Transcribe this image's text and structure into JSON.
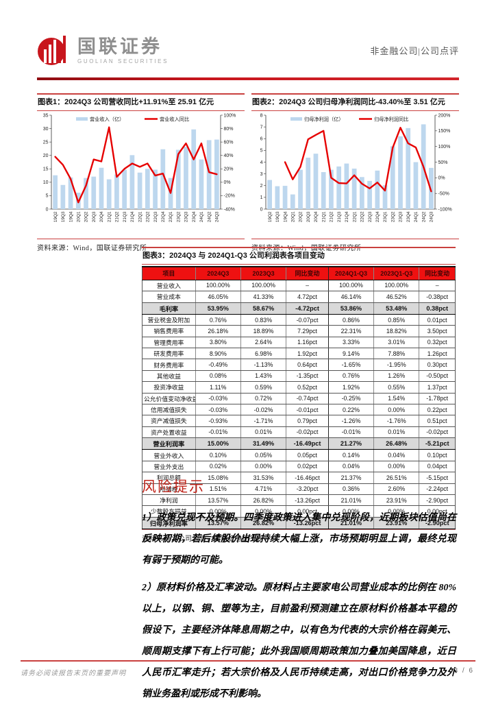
{
  "header": {
    "brand_cn": "国联证券",
    "brand_en": "GUOLIAN SECURITIES",
    "doc_type": "非金融公司|公司点评"
  },
  "figures": {
    "fig1": {
      "title": "图表1：2024Q3 公司营收同比+11.91%至 25.91 亿元",
      "source": "资料来源：Wind，国联证券研究所"
    },
    "fig2": {
      "title": "图表2：2024Q3 公司归母净利润同比-43.40%至 3.51 亿元",
      "source": "资料来源：Wind，国联证券研究所"
    },
    "fig3": {
      "title": "图表3：2024Q3 与 2024Q1-Q3 公司利润表各项目变动",
      "source": "资料来源：公司公告，国联证券研究所"
    }
  },
  "chart_data": [
    {
      "type": "bar",
      "title": "2024Q3 公司营收同比+11.91%至 25.91 亿元",
      "categories": [
        "19Q2",
        "19Q3",
        "19Q4",
        "20Q1",
        "20Q2",
        "20Q3",
        "20Q4",
        "21Q1",
        "21Q2",
        "21Q3",
        "21Q4",
        "22Q1",
        "22Q2",
        "22Q3",
        "22Q4",
        "23Q1",
        "23Q2",
        "23Q3",
        "23Q4",
        "24Q1",
        "24Q2",
        "24Q3"
      ],
      "series": [
        {
          "name": "营业收入（亿）",
          "type": "bar",
          "axis": "left",
          "values": [
            12.6,
            9.0,
            11.8,
            6.1,
            11.6,
            12.1,
            15.4,
            11.1,
            12.9,
            14.7,
            20.1,
            13.6,
            15.0,
            14.7,
            22.3,
            11.6,
            22.1,
            23.2,
            29.7,
            18.5,
            25.7,
            25.91
          ]
        },
        {
          "name": "营业收入同比",
          "type": "line",
          "axis": "right",
          "values": [
            38,
            26,
            5,
            -30,
            -5,
            34,
            31,
            82,
            8,
            20,
            28,
            23,
            28,
            10,
            13,
            -16,
            42,
            58,
            34,
            58,
            15,
            11.91
          ]
        }
      ],
      "left_axis": {
        "min": 0,
        "max": 35,
        "step": 5
      },
      "right_axis": {
        "min": -40,
        "max": 100,
        "step": 20,
        "suffix": "%"
      },
      "legend_position": "top",
      "bar_color": "#BDD7EE",
      "line_color": "#E60000"
    },
    {
      "type": "bar",
      "title": "2024Q3 公司归母净利润同比-43.40%至 3.51 亿元",
      "categories": [
        "19Q2",
        "19Q3",
        "19Q4",
        "20Q1",
        "20Q2",
        "20Q3",
        "20Q4",
        "21Q1",
        "21Q2",
        "21Q3",
        "21Q4",
        "22Q1",
        "22Q2",
        "22Q3",
        "22Q4",
        "23Q1",
        "23Q2",
        "23Q3",
        "23Q4",
        "24Q1",
        "24Q2",
        "24Q3"
      ],
      "series": [
        {
          "name": "归母净利润（亿）",
          "type": "bar",
          "axis": "left",
          "values": [
            2.48,
            1.95,
            1.98,
            1.25,
            3.35,
            4.38,
            4.72,
            3.15,
            3.35,
            3.63,
            3.88,
            3.45,
            2.73,
            2.4,
            3.28,
            2.03,
            5.35,
            6.2,
            6.9,
            4.0,
            7.22,
            3.51
          ]
        },
        {
          "name": "归母净利润同比",
          "type": "line",
          "axis": "right",
          "values": [
            null,
            null,
            50,
            -5,
            35,
            123,
            137,
            150,
            0,
            -17,
            -18,
            8,
            -19,
            -34,
            -15,
            -41,
            96,
            160,
            110,
            97,
            35,
            -43.4
          ]
        }
      ],
      "left_axis": {
        "min": 0,
        "max": 8,
        "step": 1
      },
      "right_axis": {
        "min": -100,
        "max": 200,
        "step": 50,
        "suffix": "%"
      },
      "legend_position": "top",
      "bar_color": "#BDD7EE",
      "line_color": "#E60000"
    }
  ],
  "table": {
    "columns": [
      "项目",
      "2024Q3",
      "2023Q3",
      "同比变动",
      "2024Q1-Q3",
      "2023Q1-Q3",
      "同比变动"
    ],
    "rows": [
      {
        "label": "营业收入",
        "values": [
          "100.00%",
          "100.00%",
          "–",
          "100.00%",
          "100.00%",
          "–"
        ],
        "emphasis": false
      },
      {
        "label": "营业成本",
        "values": [
          "46.05%",
          "41.33%",
          "4.72pct",
          "46.14%",
          "46.52%",
          "-0.38pct"
        ],
        "emphasis": false
      },
      {
        "label": "毛利率",
        "values": [
          "53.95%",
          "58.67%",
          "-4.72pct",
          "53.86%",
          "53.48%",
          "0.38pct"
        ],
        "emphasis": true
      },
      {
        "label": "营业税金及附加",
        "values": [
          "0.76%",
          "0.83%",
          "-0.07pct",
          "0.86%",
          "0.85%",
          "0.01pct"
        ],
        "emphasis": false
      },
      {
        "label": "销售费用率",
        "values": [
          "26.18%",
          "18.89%",
          "7.29pct",
          "22.31%",
          "18.82%",
          "3.50pct"
        ],
        "emphasis": false
      },
      {
        "label": "管理费用率",
        "values": [
          "3.80%",
          "2.64%",
          "1.16pct",
          "3.33%",
          "3.01%",
          "0.32pct"
        ],
        "emphasis": false
      },
      {
        "label": "研发费用率",
        "values": [
          "8.90%",
          "6.98%",
          "1.92pct",
          "9.14%",
          "7.88%",
          "1.26pct"
        ],
        "emphasis": false
      },
      {
        "label": "财务费用率",
        "values": [
          "-0.49%",
          "-1.13%",
          "0.64pct",
          "-1.65%",
          "-1.95%",
          "0.30pct"
        ],
        "emphasis": false
      },
      {
        "label": "其他收益",
        "values": [
          "0.08%",
          "1.43%",
          "-1.35pct",
          "0.76%",
          "1.26%",
          "-0.50pct"
        ],
        "emphasis": false
      },
      {
        "label": "投资净收益",
        "values": [
          "1.11%",
          "0.59%",
          "0.52pct",
          "1.92%",
          "0.55%",
          "1.37pct"
        ],
        "emphasis": false
      },
      {
        "label": "公允价值变动净收益",
        "values": [
          "-0.03%",
          "0.72%",
          "-0.74pct",
          "-0.25%",
          "1.54%",
          "-1.78pct"
        ],
        "emphasis": false
      },
      {
        "label": "信用减值损失",
        "values": [
          "-0.03%",
          "-0.02%",
          "-0.01pct",
          "0.22%",
          "0.00%",
          "0.22pct"
        ],
        "emphasis": false
      },
      {
        "label": "资产减值损失",
        "values": [
          "-0.93%",
          "-1.71%",
          "0.79pct",
          "-1.26%",
          "-1.76%",
          "0.51pct"
        ],
        "emphasis": false
      },
      {
        "label": "资产处置收益",
        "values": [
          "-0.01%",
          "0.01%",
          "-0.02pct",
          "-0.01%",
          "0.01%",
          "-0.02pct"
        ],
        "emphasis": false
      },
      {
        "label": "营业利润率",
        "values": [
          "15.00%",
          "31.49%",
          "-16.49pct",
          "21.27%",
          "26.48%",
          "-5.21pct"
        ],
        "emphasis": true
      },
      {
        "label": "营业外收入",
        "values": [
          "0.10%",
          "0.05%",
          "0.05pct",
          "0.14%",
          "0.04%",
          "0.10pct"
        ],
        "emphasis": false
      },
      {
        "label": "营业外支出",
        "values": [
          "0.02%",
          "0.00%",
          "0.02pct",
          "0.04%",
          "0.00%",
          "0.04pct"
        ],
        "emphasis": false
      },
      {
        "label": "利润总额",
        "values": [
          "15.08%",
          "31.53%",
          "-16.46pct",
          "21.37%",
          "26.51%",
          "-5.15pct"
        ],
        "emphasis": false
      },
      {
        "label": "所得税",
        "values": [
          "1.51%",
          "4.71%",
          "-3.20pct",
          "0.36%",
          "2.60%",
          "-2.24pct"
        ],
        "emphasis": false
      },
      {
        "label": "净利润",
        "values": [
          "13.57%",
          "26.82%",
          "-13.26pct",
          "21.01%",
          "23.91%",
          "-2.90pct"
        ],
        "emphasis": false
      },
      {
        "label": "少数股东损益",
        "values": [
          "0.00%",
          "0.00%",
          "0.00pct",
          "0.00%",
          "0.00%",
          "0.00pct"
        ],
        "emphasis": false
      },
      {
        "label": "归母净利润率",
        "values": [
          "13.57%",
          "26.82%",
          "-13.26pct",
          "21.01%",
          "23.91%",
          "-2.90pct"
        ],
        "emphasis": true
      }
    ]
  },
  "risk": {
    "heading": "风险提示",
    "paragraphs": [
      "1）政策兑现不及预期。四季度政策进入集中兑现阶段，近期板块估值尚在反映初期，若后续股价出现持续大幅上涨，市场预期明显上调，最终兑现有弱于预期的可能。",
      "2）原材料价格及汇率波动。原材料占主要家电公司营业成本的比例在 80%以上，以钢、铜、塑等为主，目前盈利预测建立在原材料价格基本平稳的假设下，主要经济体降息周期之中，以有色为代表的大宗价格在弱美元、顺周期支撑下有上行可能；此外我国顺周期政策加力叠加美国降息，近日人民币汇率走升；若大宗价格及人民币持续走高，对出口价格竞争力及外销业务盈利或形成不利影响。"
    ]
  },
  "footer": {
    "disclaimer": "请务必阅读报告末页的重要声明",
    "page": "3 / 6"
  },
  "colors": {
    "accent_red": "#C9403E",
    "bar_blue": "#BDD7EE",
    "line_red": "#E60000",
    "table_header_bg": "#EE1111",
    "emphasis_row_bg": "#D9D9D9"
  }
}
